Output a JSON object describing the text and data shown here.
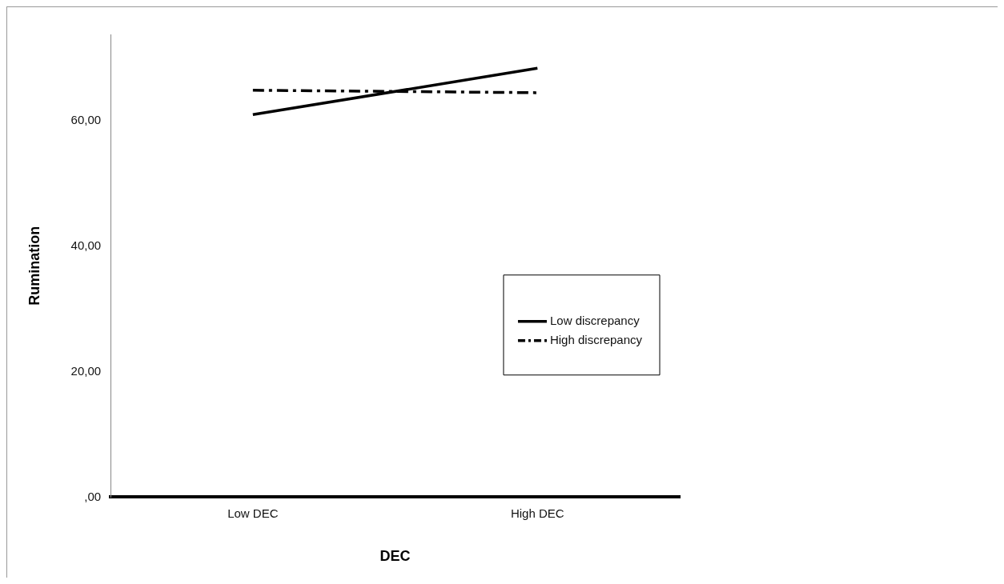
{
  "chart_data": {
    "type": "line",
    "xlabel": "DEC",
    "ylabel": "Rumination",
    "categories": [
      "Low DEC",
      "High DEC"
    ],
    "series": [
      {
        "name": "Low discrepancy",
        "color": "#000000",
        "values": [
          61.0,
          68.4
        ],
        "line_style": "solid"
      },
      {
        "name": "High discrepancy",
        "color": "#000000",
        "values": [
          64.9,
          64.5
        ],
        "line_style": "dashdot"
      }
    ],
    "ylim": [
      0,
      73.8
    ],
    "yticks": [
      {
        "value": 0,
        "label": ",00"
      },
      {
        "value": 20,
        "label": "20,00"
      },
      {
        "value": 40,
        "label": "40,00"
      },
      {
        "value": 60,
        "label": "60,00"
      }
    ],
    "grid": false,
    "legend": "right",
    "marker": "none"
  }
}
